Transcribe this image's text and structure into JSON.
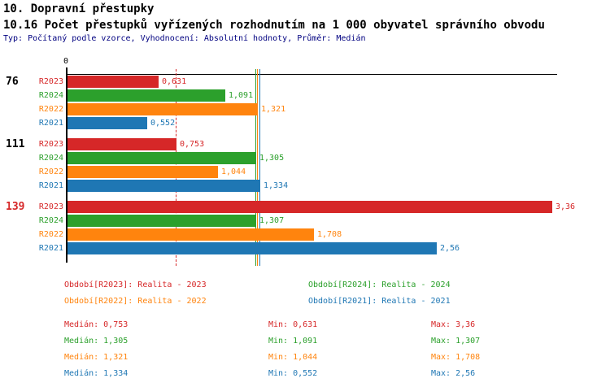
{
  "header": {
    "title": "10. Dopravní přestupky",
    "subtitle": "10.16 Počet přestupků vyřízených rozhodnutím na 1 000 obyvatel správního obvodu",
    "meta": "Typ: Počítaný podle vzorce, Vyhodnocení: Absolutní hodnoty, Průměr: Medián"
  },
  "colors": {
    "red": "#d62728",
    "green": "#2ca02c",
    "orange": "#ff840e",
    "blue": "#1f77b4",
    "axis": "#000000",
    "meta_text": "#000080"
  },
  "chart_data": {
    "type": "bar",
    "orientation": "horizontal",
    "title": "10.16 Počet přestupků vyřízených rozhodnutím na 1 000 obyvatel správního obvodu",
    "value_format": "decimal-comma",
    "axis": {
      "origin_label": "0",
      "min": 0
    },
    "series": [
      {
        "key": "R2023",
        "label": "R2023",
        "color": "#d62728",
        "median": 0.753,
        "median_display": "0,753",
        "median_line": "dashed"
      },
      {
        "key": "R2024",
        "label": "R2024",
        "color": "#2ca02c",
        "median": 1.305,
        "median_display": "1,305",
        "median_line": "solid"
      },
      {
        "key": "R2022",
        "label": "R2022",
        "color": "#ff840e",
        "median": 1.321,
        "median_display": "1,321",
        "median_line": "solid"
      },
      {
        "key": "R2021",
        "label": "R2021",
        "color": "#1f77b4",
        "median": 1.334,
        "median_display": "1,334",
        "median_line": "solid"
      }
    ],
    "groups": [
      {
        "label": "76",
        "label_color": "#000000",
        "values": [
          0.631,
          1.091,
          1.321,
          0.552
        ],
        "displays": [
          "0,631",
          "1,091",
          "1,321",
          "0,552"
        ]
      },
      {
        "label": "111",
        "label_color": "#000000",
        "values": [
          0.753,
          1.305,
          1.044,
          1.334
        ],
        "displays": [
          "0,753",
          "1,305",
          "1,044",
          "1,334"
        ]
      },
      {
        "label": "139",
        "label_color": "#d62728",
        "values": [
          3.36,
          1.307,
          1.708,
          2.56
        ],
        "displays": [
          "3,36",
          "1,307",
          "1,708",
          "2,56"
        ]
      }
    ]
  },
  "legend": {
    "items": [
      {
        "text": "Období[R2023]: Realita - 2023",
        "color": "#d62728",
        "row": 0,
        "col": 0
      },
      {
        "text": "Období[R2024]: Realita - 2024",
        "color": "#2ca02c",
        "row": 0,
        "col": 1
      },
      {
        "text": "Období[R2022]: Realita - 2022",
        "color": "#ff840e",
        "row": 1,
        "col": 0
      },
      {
        "text": "Období[R2021]: Realita - 2021",
        "color": "#1f77b4",
        "row": 1,
        "col": 1
      }
    ]
  },
  "stats": {
    "rows": [
      {
        "color": "#d62728",
        "median": "Medián: 0,753",
        "min": "Min: 0,631",
        "max": "Max: 3,36"
      },
      {
        "color": "#2ca02c",
        "median": "Medián: 1,305",
        "min": "Min: 1,091",
        "max": "Max: 1,307"
      },
      {
        "color": "#ff840e",
        "median": "Medián: 1,321",
        "min": "Min: 1,044",
        "max": "Max: 1,708"
      },
      {
        "color": "#1f77b4",
        "median": "Medián: 1,334",
        "min": "Min: 0,552",
        "max": "Max: 2,56"
      }
    ]
  }
}
